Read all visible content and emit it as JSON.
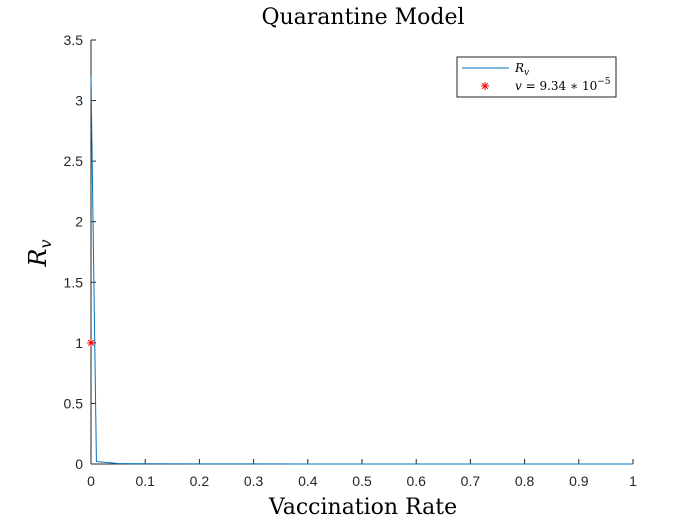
{
  "chart_data": {
    "type": "line",
    "title": "Quarantine Model",
    "xlabel": "Vaccination Rate",
    "ylabel": {
      "base": "R",
      "sub": "v"
    },
    "xlim": [
      0,
      1
    ],
    "ylim": [
      0,
      3.5
    ],
    "xticks": [
      "0",
      "0.1",
      "0.2",
      "0.3",
      "0.4",
      "0.5",
      "0.6",
      "0.7",
      "0.8",
      "0.9",
      "1"
    ],
    "yticks": [
      "0",
      "0.5",
      "1",
      "1.5",
      "2",
      "2.5",
      "3",
      "3.5"
    ],
    "grid": false,
    "legend_position": "top-right",
    "series": [
      {
        "name": {
          "base": "R",
          "sub": "v"
        },
        "color": "#0072BD",
        "x": [
          0,
          0.01,
          0.05,
          0.1,
          0.2,
          0.3,
          0.4,
          0.5,
          0.6,
          0.7,
          0.8,
          0.9,
          1
        ],
        "y": [
          3.2,
          0.02,
          0.004,
          0.002,
          0.001,
          0.0007,
          0.0005,
          0.0004,
          0.0003,
          0.0003,
          0.0002,
          0.0002,
          0.0002
        ]
      }
    ],
    "markers": [
      {
        "label": {
          "lhs": "v",
          "eq": " = 9.34 ∗ 10",
          "exp": "−5"
        },
        "color": "#FF0000",
        "symbol": "asterisk",
        "x": 9.34e-05,
        "y": 1
      }
    ]
  }
}
